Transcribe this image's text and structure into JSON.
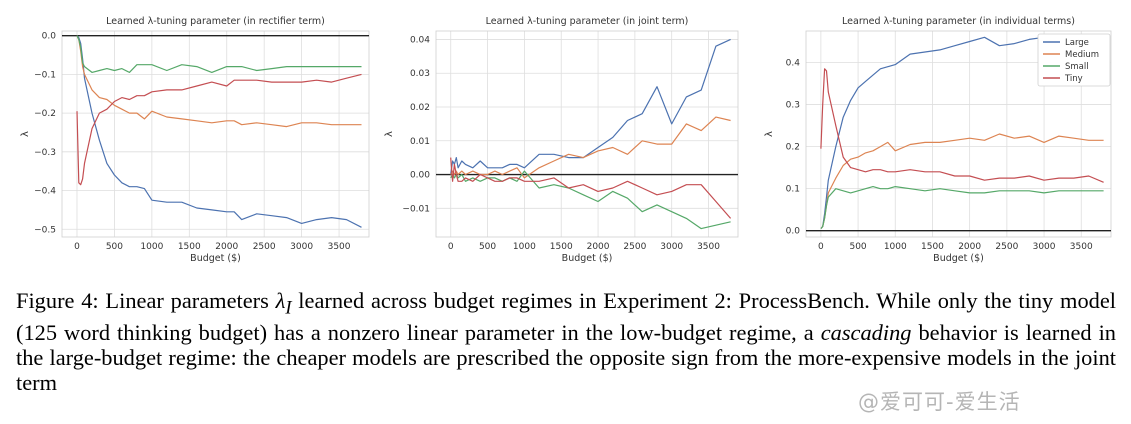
{
  "chart_data": [
    {
      "type": "line",
      "title": "Learned λ-tuning parameter (in rectifier term)",
      "xlabel": "Budget ($)",
      "ylabel": "λ",
      "xlim": [
        -200,
        3900
      ],
      "ylim": [
        -0.52,
        0.012
      ],
      "xticks": [
        0,
        500,
        1000,
        1500,
        2000,
        2500,
        3000,
        3500
      ],
      "yticks": [
        0.0,
        -0.1,
        -0.2,
        -0.3,
        -0.4,
        -0.5
      ],
      "ytick_labels": [
        "0.0",
        "−0.1",
        "−0.2",
        "−0.3",
        "−0.4",
        "−0.5"
      ],
      "zero_line": true,
      "grid": true,
      "x": [
        0,
        25,
        50,
        75,
        100,
        200,
        300,
        400,
        500,
        600,
        700,
        800,
        900,
        1000,
        1200,
        1400,
        1600,
        1800,
        2000,
        2100,
        2200,
        2400,
        2600,
        2800,
        3000,
        3200,
        3400,
        3600,
        3800
      ],
      "series": [
        {
          "name": "Large",
          "color": "#4c72b0",
          "values": [
            0.0,
            -0.005,
            -0.02,
            -0.06,
            -0.11,
            -0.2,
            -0.27,
            -0.33,
            -0.36,
            -0.38,
            -0.39,
            -0.39,
            -0.395,
            -0.425,
            -0.43,
            -0.43,
            -0.445,
            -0.45,
            -0.455,
            -0.455,
            -0.475,
            -0.46,
            -0.465,
            -0.47,
            -0.485,
            -0.475,
            -0.47,
            -0.475,
            -0.495
          ]
        },
        {
          "name": "Medium",
          "color": "#dd8452",
          "values": [
            0.0,
            -0.01,
            -0.04,
            -0.08,
            -0.1,
            -0.14,
            -0.16,
            -0.165,
            -0.18,
            -0.19,
            -0.2,
            -0.2,
            -0.215,
            -0.195,
            -0.21,
            -0.215,
            -0.22,
            -0.225,
            -0.22,
            -0.22,
            -0.23,
            -0.225,
            -0.23,
            -0.235,
            -0.225,
            -0.225,
            -0.23,
            -0.23,
            -0.23
          ]
        },
        {
          "name": "Small",
          "color": "#55a868",
          "values": [
            0.0,
            -0.01,
            -0.03,
            -0.07,
            -0.08,
            -0.095,
            -0.09,
            -0.085,
            -0.09,
            -0.085,
            -0.095,
            -0.075,
            -0.075,
            -0.075,
            -0.09,
            -0.075,
            -0.08,
            -0.095,
            -0.08,
            -0.08,
            -0.08,
            -0.09,
            -0.085,
            -0.08,
            -0.08,
            -0.08,
            -0.08,
            -0.08,
            -0.08
          ]
        },
        {
          "name": "Tiny",
          "color": "#c44e52",
          "values": [
            -0.195,
            -0.38,
            -0.385,
            -0.37,
            -0.33,
            -0.24,
            -0.2,
            -0.19,
            -0.17,
            -0.16,
            -0.165,
            -0.155,
            -0.155,
            -0.145,
            -0.14,
            -0.14,
            -0.13,
            -0.12,
            -0.13,
            -0.115,
            -0.115,
            -0.115,
            -0.12,
            -0.12,
            -0.12,
            -0.115,
            -0.12,
            -0.11,
            -0.1
          ]
        }
      ]
    },
    {
      "type": "line",
      "title": "Learned λ-tuning parameter (in joint term)",
      "xlabel": "Budget ($)",
      "ylabel": "λ",
      "xlim": [
        -200,
        3900
      ],
      "ylim": [
        -0.0185,
        0.0425
      ],
      "xticks": [
        0,
        500,
        1000,
        1500,
        2000,
        2500,
        3000,
        3500
      ],
      "yticks": [
        -0.01,
        0.0,
        0.01,
        0.02,
        0.03,
        0.04
      ],
      "ytick_labels": [
        "−0.01",
        "0.00",
        "0.01",
        "0.02",
        "0.03",
        "0.04"
      ],
      "zero_line": true,
      "grid": true,
      "x": [
        0,
        25,
        50,
        75,
        100,
        150,
        200,
        300,
        400,
        500,
        600,
        700,
        800,
        900,
        1000,
        1200,
        1400,
        1600,
        1800,
        2000,
        2200,
        2400,
        2600,
        2800,
        3000,
        3200,
        3400,
        3600,
        3800
      ],
      "series": [
        {
          "name": "Large",
          "color": "#4c72b0",
          "values": [
            0.0,
            0.004,
            0.003,
            0.005,
            0.002,
            0.004,
            0.003,
            0.002,
            0.004,
            0.002,
            0.002,
            0.002,
            0.003,
            0.003,
            0.002,
            0.006,
            0.006,
            0.005,
            0.005,
            0.008,
            0.011,
            0.016,
            0.018,
            0.026,
            0.015,
            0.023,
            0.025,
            0.038,
            0.04
          ]
        },
        {
          "name": "Medium",
          "color": "#dd8452",
          "values": [
            0.0,
            0.001,
            0.0,
            0.001,
            0.0,
            0.001,
            0.0,
            0.001,
            0.0,
            0.0,
            0.001,
            0.0,
            0.001,
            0.002,
            -0.001,
            0.002,
            0.004,
            0.006,
            0.005,
            0.007,
            0.008,
            0.006,
            0.01,
            0.009,
            0.009,
            0.015,
            0.013,
            0.017,
            0.016
          ]
        },
        {
          "name": "Small",
          "color": "#55a868",
          "values": [
            -0.001,
            0.0,
            -0.001,
            0.0,
            -0.001,
            0.0,
            -0.002,
            -0.001,
            -0.002,
            -0.001,
            -0.001,
            -0.002,
            -0.001,
            -0.002,
            0.001,
            -0.004,
            -0.003,
            -0.004,
            -0.006,
            -0.008,
            -0.005,
            -0.007,
            -0.011,
            -0.009,
            -0.011,
            -0.013,
            -0.016,
            -0.015,
            -0.014
          ]
        },
        {
          "name": "Tiny",
          "color": "#c44e52",
          "values": [
            0.005,
            -0.002,
            0.003,
            0.0,
            -0.002,
            -0.002,
            -0.001,
            -0.002,
            0.0,
            -0.001,
            -0.002,
            -0.002,
            -0.001,
            -0.001,
            -0.002,
            -0.002,
            -0.001,
            -0.004,
            -0.003,
            -0.005,
            -0.004,
            -0.002,
            -0.004,
            -0.006,
            -0.005,
            -0.003,
            -0.003,
            -0.008,
            -0.013
          ]
        }
      ]
    },
    {
      "type": "line",
      "title": "Learned λ-tuning parameter (in individual terms)",
      "xlabel": "Budget ($)",
      "ylabel": "λ",
      "xlim": [
        -200,
        3900
      ],
      "ylim": [
        -0.015,
        0.475
      ],
      "xticks": [
        0,
        500,
        1000,
        1500,
        2000,
        2500,
        3000,
        3500
      ],
      "yticks": [
        0.0,
        0.1,
        0.2,
        0.3,
        0.4
      ],
      "ytick_labels": [
        "0.0",
        "0.1",
        "0.2",
        "0.3",
        "0.4"
      ],
      "zero_line": true,
      "grid": true,
      "legend": "top-right",
      "x": [
        0,
        25,
        50,
        75,
        100,
        200,
        300,
        400,
        500,
        600,
        700,
        800,
        900,
        1000,
        1200,
        1400,
        1600,
        1800,
        2000,
        2200,
        2400,
        2600,
        2800,
        3000,
        3200,
        3400,
        3600,
        3800
      ],
      "series": [
        {
          "name": "Large",
          "color": "#4c72b0",
          "values": [
            0.005,
            0.01,
            0.04,
            0.08,
            0.12,
            0.2,
            0.27,
            0.31,
            0.34,
            0.355,
            0.37,
            0.385,
            0.39,
            0.395,
            0.42,
            0.425,
            0.43,
            0.44,
            0.45,
            0.46,
            0.44,
            0.445,
            0.455,
            0.46,
            0.46,
            0.455,
            0.46,
            0.46
          ]
        },
        {
          "name": "Medium",
          "color": "#dd8452",
          "values": [
            0.005,
            0.01,
            0.03,
            0.06,
            0.09,
            0.125,
            0.155,
            0.17,
            0.175,
            0.185,
            0.19,
            0.2,
            0.21,
            0.19,
            0.205,
            0.21,
            0.21,
            0.215,
            0.22,
            0.215,
            0.23,
            0.22,
            0.225,
            0.21,
            0.225,
            0.22,
            0.215,
            0.215
          ]
        },
        {
          "name": "Small",
          "color": "#55a868",
          "values": [
            0.005,
            0.01,
            0.03,
            0.06,
            0.08,
            0.1,
            0.095,
            0.09,
            0.095,
            0.1,
            0.105,
            0.1,
            0.1,
            0.105,
            0.1,
            0.095,
            0.1,
            0.095,
            0.09,
            0.09,
            0.095,
            0.095,
            0.095,
            0.09,
            0.095,
            0.095,
            0.095,
            0.095
          ]
        },
        {
          "name": "Tiny",
          "color": "#c44e52",
          "values": [
            0.195,
            0.3,
            0.385,
            0.38,
            0.33,
            0.25,
            0.175,
            0.15,
            0.145,
            0.14,
            0.145,
            0.145,
            0.14,
            0.14,
            0.145,
            0.14,
            0.14,
            0.13,
            0.13,
            0.12,
            0.125,
            0.125,
            0.13,
            0.12,
            0.125,
            0.125,
            0.13,
            0.115
          ]
        }
      ]
    }
  ],
  "caption": {
    "text_before": "Figure 4: Linear parameters ",
    "symbol": "λ",
    "subscript": "I",
    "text_mid": " learned across budget regimes in Experiment 2: ProcessBench. While only the tiny model (125 word thinking budget) has a nonzero linear parameter in the low-budget regime, a ",
    "emphasis": "cascading",
    "text_after": " behavior is learned in the large-budget regime: the cheaper models are prescribed the opposite sign from the more-expensive models in the joint term"
  },
  "watermark": "@爱可可-爱生活"
}
